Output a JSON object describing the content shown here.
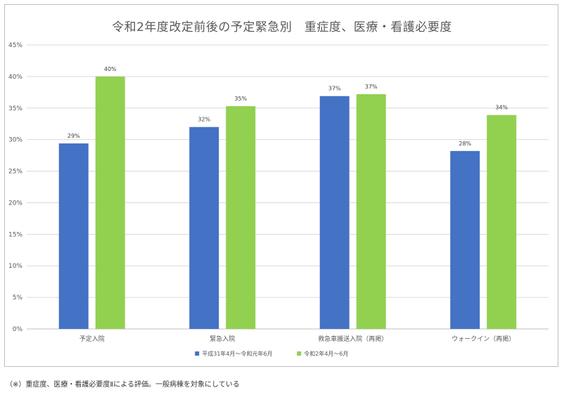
{
  "chart_data": {
    "type": "bar",
    "title": "令和2年度改定前後の予定緊急別　重症度、医療・看護必要度",
    "categories": [
      "予定入院",
      "緊急入院",
      "救急車搬送入院（再掲）",
      "ウォークイン（再掲）"
    ],
    "series": [
      {
        "name": "平成31年4月～令和元年6月",
        "color": "#4472c4",
        "values": [
          29.4,
          32.0,
          36.9,
          28.2
        ],
        "labels": [
          "29%",
          "32%",
          "37%",
          "28%"
        ]
      },
      {
        "name": "令和2年4月～6月",
        "color": "#92d050",
        "values": [
          40.0,
          35.3,
          37.2,
          33.9
        ],
        "labels": [
          "40%",
          "35%",
          "37%",
          "34%"
        ]
      }
    ],
    "ylim": [
      0,
      45
    ],
    "yticks": [
      "0%",
      "5%",
      "10%",
      "15%",
      "20%",
      "25%",
      "30%",
      "35%",
      "40%",
      "45%"
    ],
    "grid": true,
    "legend_position": "bottom"
  },
  "footnote": "（※）重症度、医療・看護必要度Ⅱによる評価。一般病棟を対象にしている"
}
